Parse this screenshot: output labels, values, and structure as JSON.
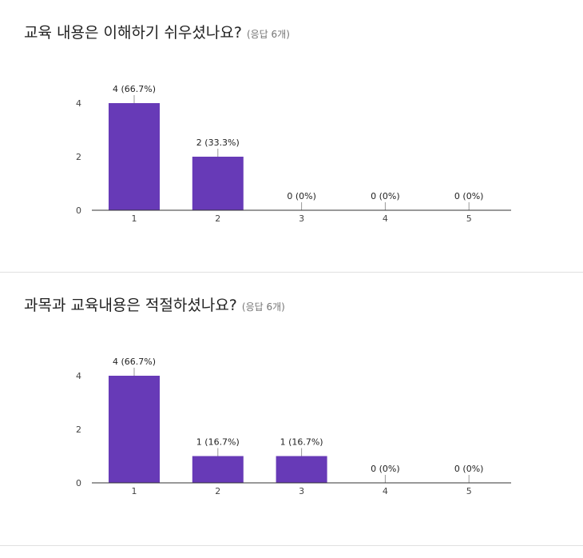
{
  "colors": {
    "bar": "#673ab7",
    "axis": "#333333",
    "leader": "#999999"
  },
  "chart_data": [
    {
      "type": "bar",
      "title": "교육 내용은 이해하기 쉬우셨나요?",
      "response_count": "(응답 6개)",
      "categories": [
        "1",
        "2",
        "3",
        "4",
        "5"
      ],
      "values": [
        4,
        2,
        0,
        0,
        0
      ],
      "value_labels": [
        "4 (66.7%)",
        "2 (33.3%)",
        "0 (0%)",
        "0 (0%)",
        "0 (0%)"
      ],
      "y_ticks": [
        "0",
        "2",
        "4"
      ],
      "ylim": [
        0,
        4
      ],
      "legend": "none",
      "grid": false
    },
    {
      "type": "bar",
      "title": "과목과 교육내용은 적절하셨나요?",
      "response_count": "(응답 6개)",
      "categories": [
        "1",
        "2",
        "3",
        "4",
        "5"
      ],
      "values": [
        4,
        1,
        1,
        0,
        0
      ],
      "value_labels": [
        "4 (66.7%)",
        "1 (16.7%)",
        "1 (16.7%)",
        "0 (0%)",
        "0 (0%)"
      ],
      "y_ticks": [
        "0",
        "2",
        "4"
      ],
      "ylim": [
        0,
        4
      ],
      "legend": "none",
      "grid": false
    }
  ]
}
